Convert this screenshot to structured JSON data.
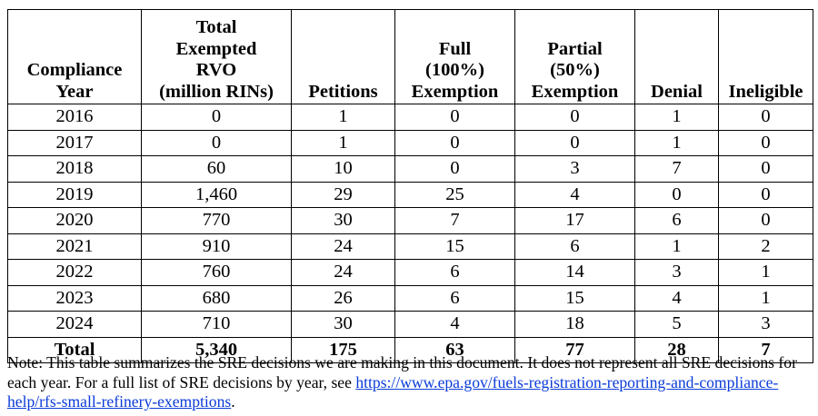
{
  "table": {
    "headers": {
      "year": [
        "Compliance",
        "Year"
      ],
      "rvo": [
        "Total",
        "Exempted",
        "RVO",
        "(million RINs)"
      ],
      "petitions": [
        "Petitions"
      ],
      "full": [
        "Full",
        "(100%)",
        "Exemption"
      ],
      "partial": [
        "Partial",
        "(50%)",
        "Exemption"
      ],
      "denial": [
        "Denial"
      ],
      "ineligible": [
        "Ineligible"
      ]
    },
    "rows": [
      [
        "2016",
        "0",
        "1",
        "0",
        "0",
        "1",
        "0"
      ],
      [
        "2017",
        "0",
        "1",
        "0",
        "0",
        "1",
        "0"
      ],
      [
        "2018",
        "60",
        "10",
        "0",
        "3",
        "7",
        "0"
      ],
      [
        "2019",
        "1,460",
        "29",
        "25",
        "4",
        "0",
        "0"
      ],
      [
        "2020",
        "770",
        "30",
        "7",
        "17",
        "6",
        "0"
      ],
      [
        "2021",
        "910",
        "24",
        "15",
        "6",
        "1",
        "2"
      ],
      [
        "2022",
        "760",
        "24",
        "6",
        "14",
        "3",
        "1"
      ],
      [
        "2023",
        "680",
        "26",
        "6",
        "15",
        "4",
        "1"
      ],
      [
        "2024",
        "710",
        "30",
        "4",
        "18",
        "5",
        "3"
      ]
    ],
    "total": [
      "Total",
      "5,340",
      "175",
      "63",
      "77",
      "28",
      "7"
    ]
  },
  "note": {
    "text": "Note: This table summarizes the SRE decisions we are making in this document. It does not represent all SRE decisions for each year. For a full list of SRE decisions by year, see ",
    "link_part1": "https://www.epa.gov/fuels-registration-",
    "link_part2": "reporting-and-compliance-help/rfs-small-refinery-exemptions",
    "end": ".",
    "link_color": "#0b3bd8"
  }
}
